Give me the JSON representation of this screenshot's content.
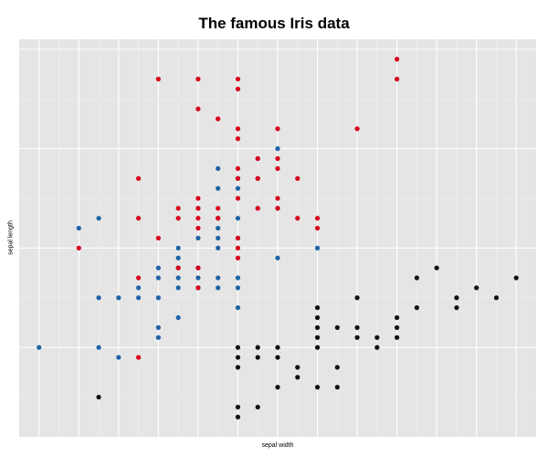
{
  "chart_data": {
    "type": "scatter",
    "title": "The famous Iris data",
    "xlabel": "sepal width",
    "ylabel": "sepal length",
    "xlim": [
      1.9,
      4.5
    ],
    "ylim": [
      4.1,
      8.1
    ],
    "grid": true,
    "legend": "none",
    "x_tick_labels": [],
    "y_tick_labels": [],
    "colors": {
      "panel_background": "#e5e5e5",
      "grid_major": "#ffffff",
      "grid_minor": "#f2f2f2",
      "setosa": "#111111",
      "versicolor": "#1f62a7",
      "virginica": "#d7001a"
    },
    "series": [
      {
        "color": "#111111",
        "points": [
          [
            2.3,
            4.5
          ],
          [
            3.0,
            4.4
          ],
          [
            3.0,
            4.3
          ],
          [
            3.1,
            4.4
          ],
          [
            3.2,
            4.6
          ],
          [
            3.3,
            4.7
          ],
          [
            3.3,
            4.8
          ],
          [
            3.4,
            4.6
          ],
          [
            3.5,
            4.8
          ],
          [
            3.5,
            4.6
          ],
          [
            3.0,
            4.8
          ],
          [
            3.0,
            4.9
          ],
          [
            3.0,
            5.0
          ],
          [
            3.1,
            4.9
          ],
          [
            3.1,
            5.0
          ],
          [
            3.2,
            5.0
          ],
          [
            3.2,
            4.9
          ],
          [
            3.4,
            5.0
          ],
          [
            3.4,
            5.1
          ],
          [
            3.4,
            5.2
          ],
          [
            3.4,
            5.3
          ],
          [
            3.4,
            5.4
          ],
          [
            3.5,
            5.2
          ],
          [
            3.6,
            5.1
          ],
          [
            3.6,
            5.2
          ],
          [
            3.7,
            5.0
          ],
          [
            3.7,
            5.1
          ],
          [
            3.8,
            5.1
          ],
          [
            3.8,
            5.2
          ],
          [
            3.8,
            5.3
          ],
          [
            3.9,
            5.4
          ],
          [
            3.9,
            5.7
          ],
          [
            3.6,
            5.5
          ],
          [
            4.0,
            5.8
          ],
          [
            4.1,
            5.5
          ],
          [
            4.1,
            5.4
          ],
          [
            4.2,
            5.6
          ],
          [
            4.3,
            5.5
          ],
          [
            4.4,
            5.7
          ]
        ]
      },
      {
        "color": "#1f62a7",
        "points": [
          [
            2.0,
            5.0
          ],
          [
            2.2,
            6.2
          ],
          [
            2.3,
            6.3
          ],
          [
            2.3,
            5.5
          ],
          [
            2.3,
            5.0
          ],
          [
            2.4,
            4.9
          ],
          [
            2.4,
            5.5
          ],
          [
            2.5,
            5.5
          ],
          [
            2.5,
            5.6
          ],
          [
            2.6,
            5.7
          ],
          [
            2.6,
            5.5
          ],
          [
            2.6,
            5.1
          ],
          [
            2.6,
            5.8
          ],
          [
            2.6,
            5.2
          ],
          [
            2.7,
            5.8
          ],
          [
            2.7,
            5.9
          ],
          [
            2.7,
            5.7
          ],
          [
            2.7,
            5.6
          ],
          [
            2.7,
            5.3
          ],
          [
            2.7,
            6.0
          ],
          [
            2.8,
            6.1
          ],
          [
            2.8,
            5.7
          ],
          [
            2.8,
            5.6
          ],
          [
            2.8,
            5.8
          ],
          [
            2.8,
            6.4
          ],
          [
            2.9,
            6.8
          ],
          [
            2.9,
            6.6
          ],
          [
            2.9,
            6.2
          ],
          [
            2.9,
            6.1
          ],
          [
            2.9,
            5.7
          ],
          [
            2.9,
            5.6
          ],
          [
            2.9,
            6.3
          ],
          [
            2.9,
            6.0
          ],
          [
            3.0,
            6.7
          ],
          [
            3.0,
            6.6
          ],
          [
            3.0,
            6.3
          ],
          [
            3.0,
            6.1
          ],
          [
            3.0,
            5.7
          ],
          [
            3.0,
            5.6
          ],
          [
            3.0,
            5.4
          ],
          [
            3.1,
            6.4
          ],
          [
            3.1,
            6.9
          ],
          [
            3.1,
            6.7
          ],
          [
            3.2,
            7.0
          ],
          [
            3.2,
            6.4
          ],
          [
            3.2,
            5.9
          ],
          [
            3.4,
            6.0
          ]
        ]
      },
      {
        "color": "#d7001a",
        "points": [
          [
            2.2,
            6.0
          ],
          [
            2.5,
            6.7
          ],
          [
            2.5,
            6.3
          ],
          [
            2.5,
            5.7
          ],
          [
            2.5,
            4.9
          ],
          [
            2.6,
            7.7
          ],
          [
            2.6,
            6.1
          ],
          [
            2.7,
            6.4
          ],
          [
            2.7,
            5.8
          ],
          [
            2.7,
            6.3
          ],
          [
            2.8,
            7.7
          ],
          [
            2.8,
            7.4
          ],
          [
            2.8,
            6.5
          ],
          [
            2.8,
            6.4
          ],
          [
            2.8,
            6.3
          ],
          [
            2.8,
            6.2
          ],
          [
            2.8,
            5.8
          ],
          [
            2.8,
            5.6
          ],
          [
            2.9,
            7.3
          ],
          [
            2.9,
            6.4
          ],
          [
            2.9,
            6.3
          ],
          [
            3.0,
            7.7
          ],
          [
            3.0,
            7.6
          ],
          [
            3.0,
            7.2
          ],
          [
            3.0,
            7.1
          ],
          [
            3.0,
            6.8
          ],
          [
            3.0,
            6.7
          ],
          [
            3.0,
            6.5
          ],
          [
            3.0,
            6.1
          ],
          [
            3.0,
            6.0
          ],
          [
            3.0,
            5.9
          ],
          [
            3.1,
            6.9
          ],
          [
            3.1,
            6.7
          ],
          [
            3.1,
            6.4
          ],
          [
            3.2,
            7.2
          ],
          [
            3.2,
            6.9
          ],
          [
            3.2,
            6.8
          ],
          [
            3.2,
            6.5
          ],
          [
            3.2,
            6.4
          ],
          [
            3.3,
            6.7
          ],
          [
            3.3,
            6.3
          ],
          [
            3.4,
            6.3
          ],
          [
            3.4,
            6.2
          ],
          [
            3.6,
            7.2
          ],
          [
            3.8,
            7.7
          ],
          [
            3.8,
            7.9
          ]
        ]
      }
    ]
  }
}
